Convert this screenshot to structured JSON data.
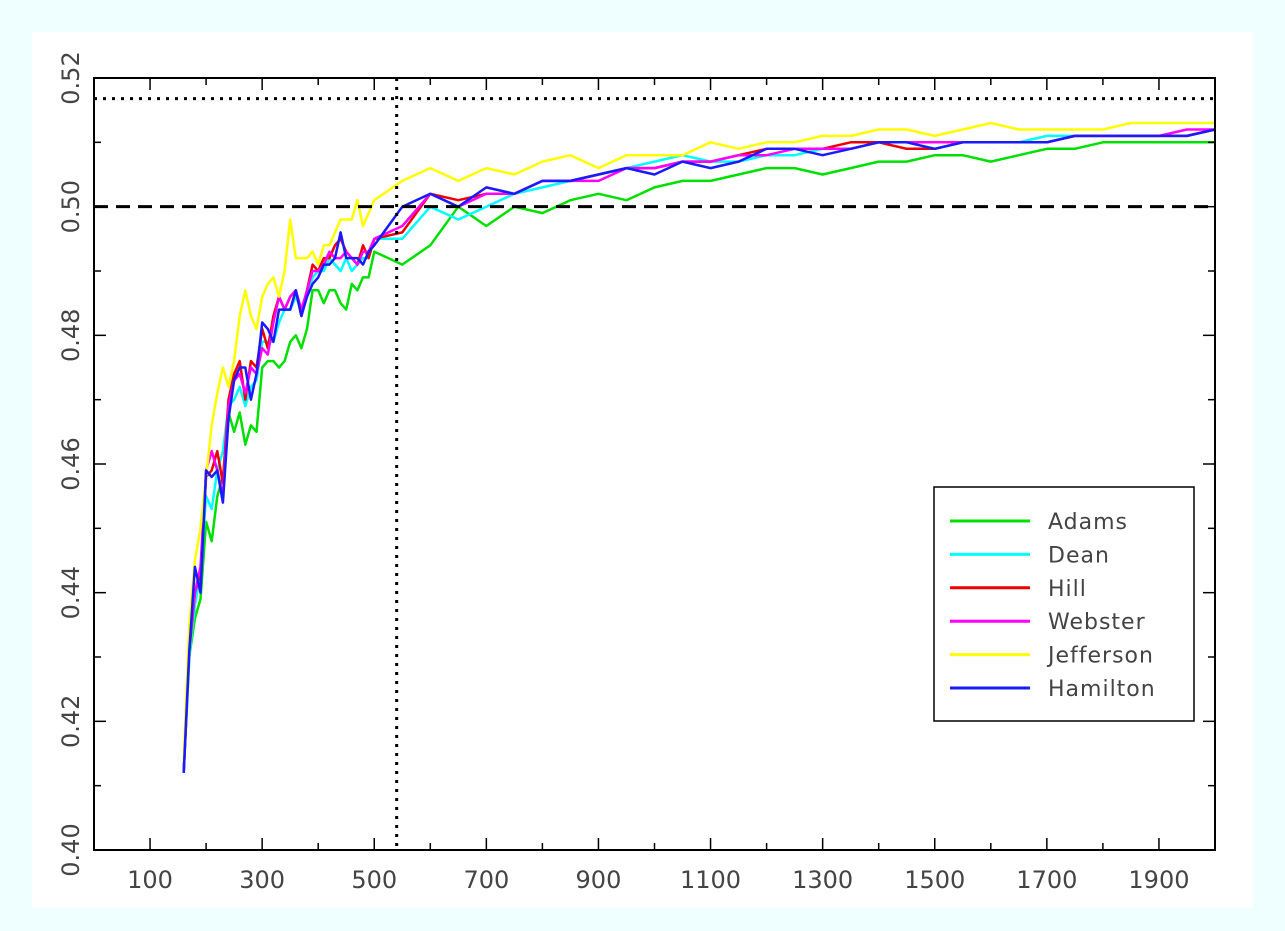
{
  "chart_data": {
    "type": "line",
    "title": "",
    "xlabel": "",
    "ylabel": "",
    "xlim": [
      0,
      2000
    ],
    "ylim": [
      0.4,
      0.52
    ],
    "x_ticks": [
      100,
      300,
      500,
      700,
      900,
      1100,
      1300,
      1500,
      1700,
      1900
    ],
    "y_ticks": [
      0.4,
      0.42,
      0.44,
      0.46,
      0.48,
      0.5,
      0.52
    ],
    "x_tick_labels": [
      "100",
      "300",
      "500",
      "700",
      "900",
      "1100",
      "1300",
      "1500",
      "1700",
      "1900"
    ],
    "y_tick_labels": [
      "0.40",
      "0.42",
      "0.44",
      "0.46",
      "0.48",
      "0.50",
      "0.52"
    ],
    "grid": false,
    "legend_position": "lower-right",
    "reference_lines": {
      "dashed_horizontal_y": 0.5,
      "dotted_horizontal_y": 0.5168,
      "dotted_vertical_x": 540
    },
    "series": [
      {
        "name": "Adams",
        "color": "#00e000",
        "x": [
          160,
          170,
          180,
          190,
          200,
          210,
          220,
          230,
          240,
          250,
          260,
          270,
          280,
          290,
          300,
          310,
          320,
          330,
          340,
          350,
          360,
          370,
          380,
          390,
          400,
          410,
          420,
          430,
          440,
          450,
          460,
          470,
          480,
          490,
          500,
          550,
          600,
          650,
          700,
          750,
          800,
          850,
          900,
          950,
          1000,
          1050,
          1100,
          1150,
          1200,
          1250,
          1300,
          1350,
          1400,
          1450,
          1500,
          1550,
          1600,
          1650,
          1700,
          1750,
          1800,
          1850,
          1900,
          1950,
          2000
        ],
        "values": [
          0.412,
          0.43,
          0.436,
          0.439,
          0.451,
          0.448,
          0.455,
          0.458,
          0.468,
          0.465,
          0.468,
          0.463,
          0.466,
          0.465,
          0.475,
          0.476,
          0.476,
          0.475,
          0.476,
          0.479,
          0.48,
          0.478,
          0.481,
          0.487,
          0.487,
          0.485,
          0.487,
          0.487,
          0.485,
          0.484,
          0.488,
          0.487,
          0.489,
          0.489,
          0.493,
          0.491,
          0.494,
          0.5,
          0.497,
          0.5,
          0.499,
          0.501,
          0.502,
          0.501,
          0.503,
          0.504,
          0.504,
          0.505,
          0.506,
          0.506,
          0.505,
          0.506,
          0.507,
          0.507,
          0.508,
          0.508,
          0.507,
          0.508,
          0.509,
          0.509,
          0.51,
          0.51,
          0.51,
          0.51,
          0.51
        ]
      },
      {
        "name": "Dean",
        "color": "#00ffff",
        "x": [
          160,
          170,
          180,
          190,
          200,
          210,
          220,
          230,
          240,
          250,
          260,
          270,
          280,
          290,
          300,
          310,
          320,
          330,
          340,
          350,
          360,
          370,
          380,
          390,
          400,
          410,
          420,
          430,
          440,
          450,
          460,
          470,
          480,
          490,
          500,
          550,
          600,
          650,
          700,
          750,
          800,
          850,
          900,
          950,
          1000,
          1050,
          1100,
          1150,
          1200,
          1250,
          1300,
          1350,
          1400,
          1450,
          1500,
          1550,
          1600,
          1650,
          1700,
          1750,
          1800,
          1850,
          1900,
          1950,
          2000
        ],
        "values": [
          0.412,
          0.43,
          0.438,
          0.443,
          0.455,
          0.453,
          0.459,
          0.462,
          0.469,
          0.47,
          0.472,
          0.469,
          0.472,
          0.473,
          0.479,
          0.479,
          0.479,
          0.482,
          0.484,
          0.484,
          0.486,
          0.484,
          0.486,
          0.489,
          0.49,
          0.49,
          0.492,
          0.491,
          0.49,
          0.492,
          0.49,
          0.491,
          0.492,
          0.492,
          0.495,
          0.495,
          0.5,
          0.498,
          0.5,
          0.502,
          0.503,
          0.504,
          0.505,
          0.506,
          0.507,
          0.508,
          0.507,
          0.507,
          0.508,
          0.508,
          0.509,
          0.509,
          0.51,
          0.51,
          0.509,
          0.51,
          0.51,
          0.51,
          0.511,
          0.511,
          0.511,
          0.511,
          0.511,
          0.511,
          0.512
        ]
      },
      {
        "name": "Hill",
        "color": "#ee0000",
        "x": [
          160,
          170,
          180,
          190,
          200,
          210,
          220,
          230,
          240,
          250,
          260,
          270,
          280,
          290,
          300,
          310,
          320,
          330,
          340,
          350,
          360,
          370,
          380,
          390,
          400,
          410,
          420,
          430,
          440,
          450,
          460,
          470,
          480,
          490,
          500,
          550,
          600,
          650,
          700,
          750,
          800,
          850,
          900,
          950,
          1000,
          1050,
          1100,
          1150,
          1200,
          1250,
          1300,
          1350,
          1400,
          1450,
          1500,
          1550,
          1600,
          1650,
          1700,
          1750,
          1800,
          1850,
          1900,
          1950,
          2000
        ],
        "values": [
          0.412,
          0.431,
          0.44,
          0.443,
          0.458,
          0.459,
          0.462,
          0.457,
          0.47,
          0.474,
          0.476,
          0.47,
          0.476,
          0.475,
          0.481,
          0.478,
          0.483,
          0.486,
          0.484,
          0.486,
          0.487,
          0.483,
          0.487,
          0.491,
          0.49,
          0.492,
          0.492,
          0.494,
          0.495,
          0.493,
          0.492,
          0.491,
          0.494,
          0.492,
          0.495,
          0.496,
          0.502,
          0.501,
          0.502,
          0.502,
          0.504,
          0.504,
          0.505,
          0.506,
          0.506,
          0.507,
          0.507,
          0.508,
          0.509,
          0.509,
          0.509,
          0.51,
          0.51,
          0.509,
          0.509,
          0.51,
          0.51,
          0.51,
          0.51,
          0.511,
          0.511,
          0.511,
          0.511,
          0.511,
          0.512
        ]
      },
      {
        "name": "Webster",
        "color": "#ff00ff",
        "x": [
          160,
          170,
          180,
          190,
          200,
          210,
          220,
          230,
          240,
          250,
          260,
          270,
          280,
          290,
          300,
          310,
          320,
          330,
          340,
          350,
          360,
          370,
          380,
          390,
          400,
          410,
          420,
          430,
          440,
          450,
          460,
          470,
          480,
          490,
          500,
          550,
          600,
          650,
          700,
          750,
          800,
          850,
          900,
          950,
          1000,
          1050,
          1100,
          1150,
          1200,
          1250,
          1300,
          1350,
          1400,
          1450,
          1500,
          1550,
          1600,
          1650,
          1700,
          1750,
          1800,
          1850,
          1900,
          1950,
          2000
        ],
        "values": [
          0.412,
          0.432,
          0.44,
          0.444,
          0.459,
          0.462,
          0.459,
          0.455,
          0.469,
          0.473,
          0.474,
          0.471,
          0.475,
          0.474,
          0.478,
          0.477,
          0.482,
          0.486,
          0.484,
          0.486,
          0.487,
          0.484,
          0.487,
          0.49,
          0.49,
          0.491,
          0.493,
          0.492,
          0.492,
          0.493,
          0.492,
          0.491,
          0.493,
          0.493,
          0.495,
          0.497,
          0.502,
          0.5,
          0.502,
          0.502,
          0.504,
          0.504,
          0.504,
          0.506,
          0.506,
          0.507,
          0.507,
          0.508,
          0.508,
          0.509,
          0.509,
          0.509,
          0.51,
          0.51,
          0.51,
          0.51,
          0.51,
          0.51,
          0.51,
          0.511,
          0.511,
          0.511,
          0.511,
          0.512,
          0.512
        ]
      },
      {
        "name": "Jefferson",
        "color": "#ffff00",
        "x": [
          160,
          170,
          180,
          190,
          200,
          210,
          220,
          230,
          240,
          250,
          260,
          270,
          280,
          290,
          300,
          310,
          320,
          330,
          340,
          350,
          360,
          370,
          380,
          390,
          400,
          410,
          420,
          430,
          440,
          450,
          460,
          470,
          480,
          490,
          500,
          550,
          600,
          650,
          700,
          750,
          800,
          850,
          900,
          950,
          1000,
          1050,
          1100,
          1150,
          1200,
          1250,
          1300,
          1350,
          1400,
          1450,
          1500,
          1550,
          1600,
          1650,
          1700,
          1750,
          1800,
          1850,
          1900,
          1950,
          2000
        ],
        "values": [
          0.414,
          0.435,
          0.445,
          0.45,
          0.458,
          0.466,
          0.471,
          0.475,
          0.472,
          0.476,
          0.483,
          0.487,
          0.483,
          0.481,
          0.486,
          0.488,
          0.489,
          0.486,
          0.49,
          0.498,
          0.492,
          0.492,
          0.492,
          0.493,
          0.491,
          0.494,
          0.494,
          0.496,
          0.498,
          0.498,
          0.498,
          0.501,
          0.497,
          0.499,
          0.501,
          0.504,
          0.506,
          0.504,
          0.506,
          0.505,
          0.507,
          0.508,
          0.506,
          0.508,
          0.508,
          0.508,
          0.51,
          0.509,
          0.51,
          0.51,
          0.511,
          0.511,
          0.512,
          0.512,
          0.511,
          0.512,
          0.513,
          0.512,
          0.512,
          0.512,
          0.512,
          0.513,
          0.513,
          0.513,
          0.513
        ]
      },
      {
        "name": "Hamilton",
        "color": "#1a1aff",
        "x": [
          160,
          170,
          180,
          190,
          200,
          210,
          220,
          230,
          240,
          250,
          260,
          270,
          280,
          290,
          300,
          310,
          320,
          330,
          340,
          350,
          360,
          370,
          380,
          390,
          400,
          410,
          420,
          430,
          440,
          450,
          460,
          470,
          480,
          490,
          500,
          550,
          600,
          650,
          700,
          750,
          800,
          850,
          900,
          950,
          1000,
          1050,
          1100,
          1150,
          1200,
          1250,
          1300,
          1350,
          1400,
          1450,
          1500,
          1550,
          1600,
          1650,
          1700,
          1750,
          1800,
          1850,
          1900,
          1950,
          2000
        ],
        "values": [
          0.412,
          0.431,
          0.444,
          0.44,
          0.459,
          0.458,
          0.459,
          0.454,
          0.467,
          0.473,
          0.475,
          0.475,
          0.47,
          0.474,
          0.482,
          0.481,
          0.479,
          0.484,
          0.484,
          0.484,
          0.487,
          0.483,
          0.486,
          0.488,
          0.489,
          0.491,
          0.491,
          0.492,
          0.496,
          0.492,
          0.492,
          0.492,
          0.491,
          0.493,
          0.494,
          0.5,
          0.502,
          0.5,
          0.503,
          0.502,
          0.504,
          0.504,
          0.505,
          0.506,
          0.505,
          0.507,
          0.506,
          0.507,
          0.509,
          0.509,
          0.508,
          0.509,
          0.51,
          0.51,
          0.509,
          0.51,
          0.51,
          0.51,
          0.51,
          0.511,
          0.511,
          0.511,
          0.511,
          0.511,
          0.512
        ]
      }
    ]
  }
}
